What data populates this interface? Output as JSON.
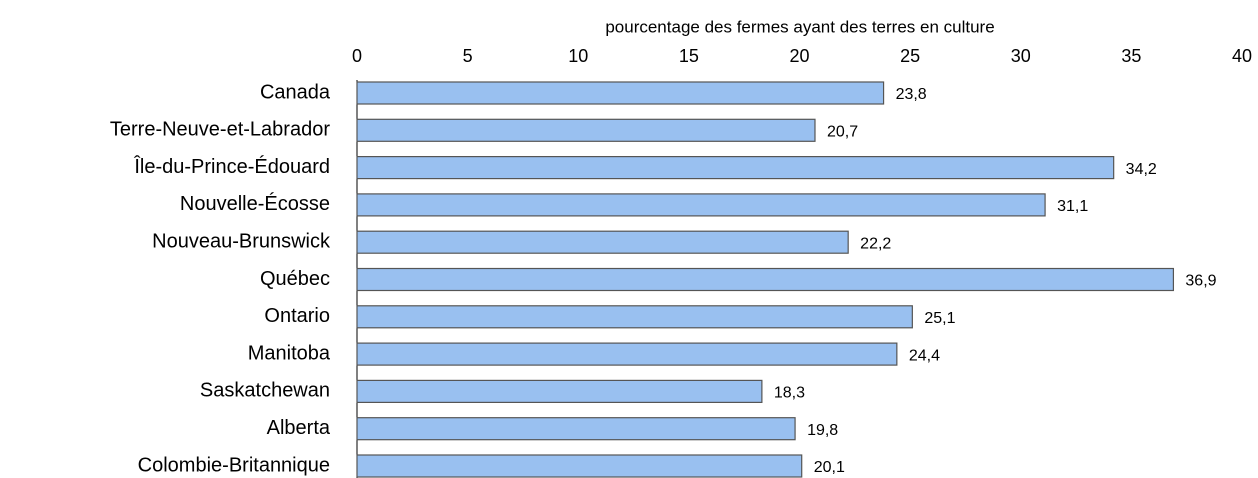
{
  "chart_data": {
    "type": "bar",
    "orientation": "horizontal",
    "x_axis_label": "pourcentage des fermes ayant des terres en culture",
    "categories": [
      "Canada",
      "Terre-Neuve-et-Labrador",
      "Île-du-Prince-Édouard",
      "Nouvelle-Écosse",
      "Nouveau-Brunswick",
      "Québec",
      "Ontario",
      "Manitoba",
      "Saskatchewan",
      "Alberta",
      "Colombie-Britannique"
    ],
    "values": [
      23.8,
      20.7,
      34.2,
      31.1,
      22.2,
      36.9,
      25.1,
      24.4,
      18.3,
      19.8,
      20.1
    ],
    "value_labels": [
      "23,8",
      "20,7",
      "34,2",
      "31,1",
      "22,2",
      "36,9",
      "25,1",
      "24,4",
      "18,3",
      "19,8",
      "20,1"
    ],
    "color": "#99c0f0",
    "xlim": [
      0,
      40
    ],
    "xticks": [
      0,
      5,
      10,
      15,
      20,
      25,
      30,
      35,
      40
    ]
  }
}
